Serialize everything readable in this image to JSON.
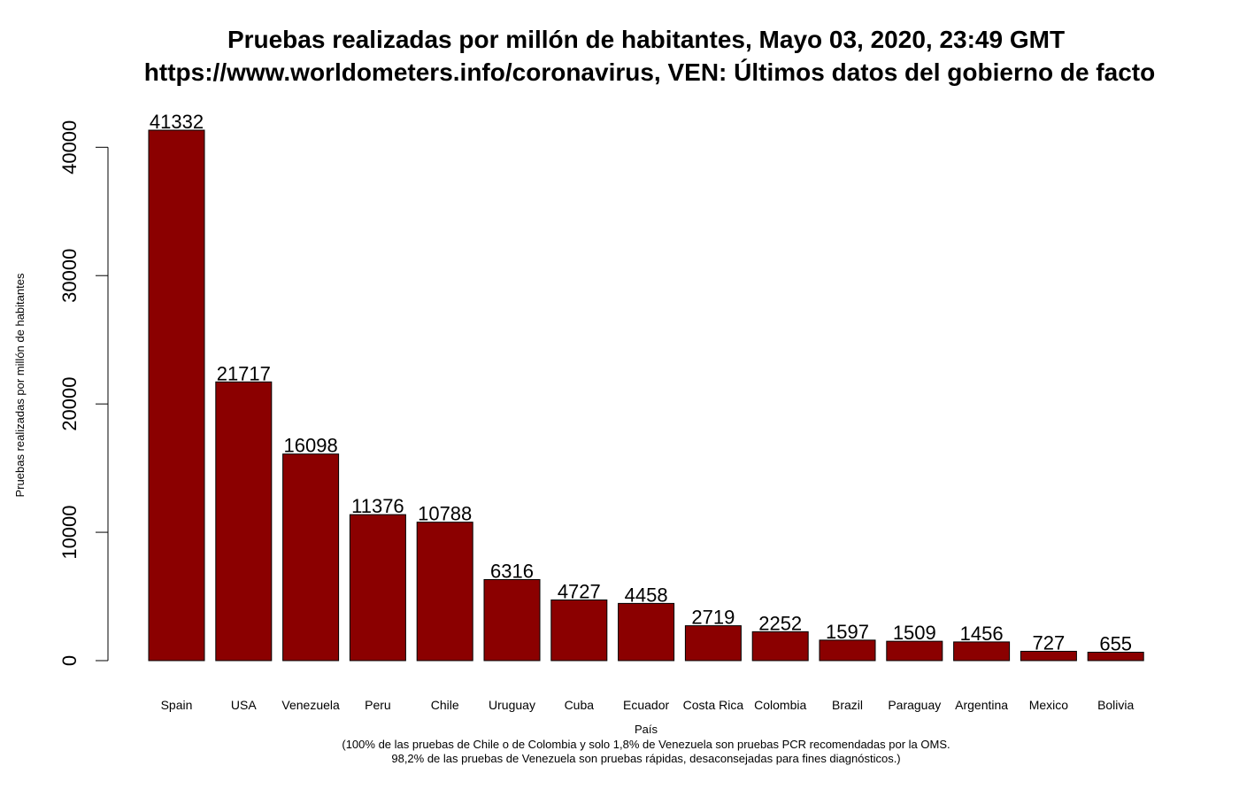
{
  "chart_data": {
    "type": "bar",
    "title": "Pruebas realizadas por millón de habitantes, Mayo 03, 2020, 23:49 GMT",
    "subtitle": "https://www.worldometers.info/coronavirus, VEN: Últimos datos del gobierno de facto",
    "xlabel": "País",
    "ylabel": "Pruebas realizadas por millón de habitantes",
    "notes": [
      "(100% de las pruebas de Chile o de Colombia y solo 1,8% de Venezuela son pruebas PCR recomendadas por la OMS.",
      "98,2% de las pruebas de Venezuela son pruebas rápidas, desaconsejadas para fines diagnósticos.)"
    ],
    "categories": [
      "Spain",
      "USA",
      "Venezuela",
      "Peru",
      "Chile",
      "Uruguay",
      "Cuba",
      "Ecuador",
      "Costa Rica",
      "Colombia",
      "Brazil",
      "Paraguay",
      "Argentina",
      "Mexico",
      "Bolivia"
    ],
    "values": [
      41332,
      21717,
      16098,
      11376,
      10788,
      6316,
      4727,
      4458,
      2719,
      2252,
      1597,
      1509,
      1456,
      727,
      655
    ],
    "yticks": [
      0,
      10000,
      20000,
      30000,
      40000
    ],
    "ylim": [
      0,
      41332
    ],
    "grid": false,
    "bar_color": "#8B0000"
  }
}
